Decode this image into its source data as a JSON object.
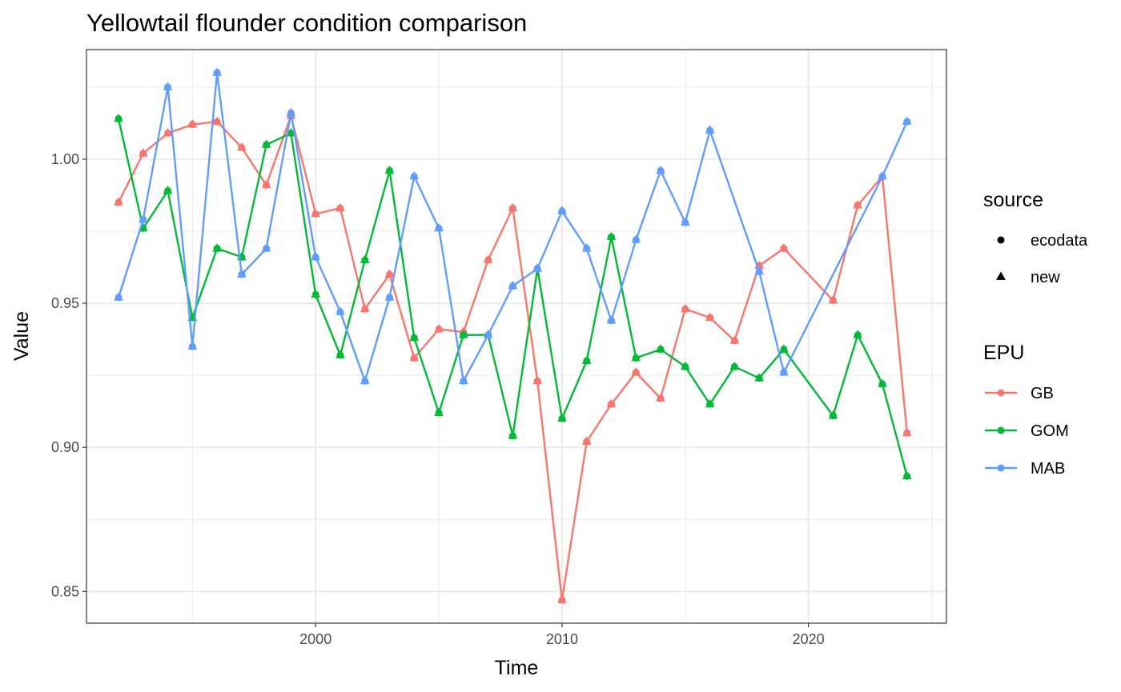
{
  "chart_data": {
    "type": "line",
    "title": "Yellowtail flounder condition comparison",
    "xlabel": "Time",
    "ylabel": "Value",
    "xlim": [
      1990.7,
      2025.6
    ],
    "ylim": [
      0.839,
      1.038
    ],
    "x_ticks": [
      2000,
      2010,
      2020
    ],
    "x_tick_labels": [
      "2000",
      "2010",
      "2020"
    ],
    "y_ticks": [
      0.85,
      0.9,
      0.95,
      1.0
    ],
    "y_tick_labels": [
      "0.85",
      "0.90",
      "0.95",
      "1.00"
    ],
    "x_minor_ticks": [
      1995,
      2005,
      2015,
      2025
    ],
    "y_minor_ticks": [
      0.875,
      0.925,
      0.975,
      1.025
    ],
    "grid": true,
    "legend_position": "right",
    "legends": [
      {
        "title": "source",
        "kind": "shape",
        "entries": [
          {
            "label": "ecodata",
            "shape": "circle"
          },
          {
            "label": "new",
            "shape": "triangle"
          }
        ]
      },
      {
        "title": "EPU",
        "kind": "color",
        "entries": [
          {
            "label": "GB",
            "color": "#F8766D"
          },
          {
            "label": "GOM",
            "color": "#00BA38"
          },
          {
            "label": "MAB",
            "color": "#619CFF"
          }
        ]
      }
    ],
    "series": [
      {
        "name": "GB",
        "color": "#F8766D",
        "x": [
          1992,
          1993,
          1994,
          1995,
          1996,
          1997,
          1998,
          1999,
          2000,
          2001,
          2002,
          2003,
          2004,
          2005,
          2006,
          2007,
          2008,
          2009,
          2010,
          2011,
          2012,
          2013,
          2014,
          2015,
          2016,
          2017,
          2018,
          2019,
          2021,
          2022,
          2023,
          2024
        ],
        "y": [
          0.985,
          1.002,
          1.009,
          1.012,
          1.013,
          1.004,
          0.991,
          1.015,
          0.981,
          0.983,
          0.948,
          0.96,
          0.931,
          0.941,
          0.94,
          0.965,
          0.983,
          0.923,
          0.847,
          0.902,
          0.915,
          0.926,
          0.917,
          0.948,
          0.945,
          0.937,
          0.963,
          0.969,
          0.951,
          0.984,
          0.994,
          0.905
        ]
      },
      {
        "name": "GOM",
        "color": "#00BA38",
        "x": [
          1992,
          1993,
          1994,
          1995,
          1996,
          1997,
          1998,
          1999,
          2000,
          2001,
          2002,
          2003,
          2004,
          2005,
          2006,
          2007,
          2008,
          2009,
          2010,
          2011,
          2012,
          2013,
          2014,
          2015,
          2016,
          2017,
          2018,
          2019,
          2021,
          2022,
          2023,
          2024
        ],
        "y": [
          1.014,
          0.976,
          0.989,
          0.945,
          0.969,
          0.966,
          1.005,
          1.009,
          0.953,
          0.932,
          0.965,
          0.996,
          0.938,
          0.912,
          0.939,
          0.939,
          0.904,
          0.962,
          0.91,
          0.93,
          0.973,
          0.931,
          0.934,
          0.928,
          0.915,
          0.928,
          0.924,
          0.934,
          0.911,
          0.939,
          0.922,
          0.89
        ]
      },
      {
        "name": "MAB",
        "color": "#619CFF",
        "x": [
          1992,
          1993,
          1994,
          1995,
          1996,
          1997,
          1998,
          1999,
          2000,
          2001,
          2002,
          2003,
          2004,
          2005,
          2006,
          2007,
          2008,
          2009,
          2010,
          2011,
          2012,
          2013,
          2014,
          2015,
          2016,
          2018,
          2019,
          2023,
          2024
        ],
        "y": [
          0.952,
          0.979,
          1.025,
          0.935,
          1.03,
          0.96,
          0.969,
          1.016,
          0.966,
          0.947,
          0.923,
          0.952,
          0.994,
          0.976,
          0.923,
          0.939,
          0.956,
          0.962,
          0.982,
          0.969,
          0.944,
          0.972,
          0.996,
          0.978,
          1.01,
          0.961,
          0.926,
          0.994,
          1.013
        ]
      }
    ]
  }
}
